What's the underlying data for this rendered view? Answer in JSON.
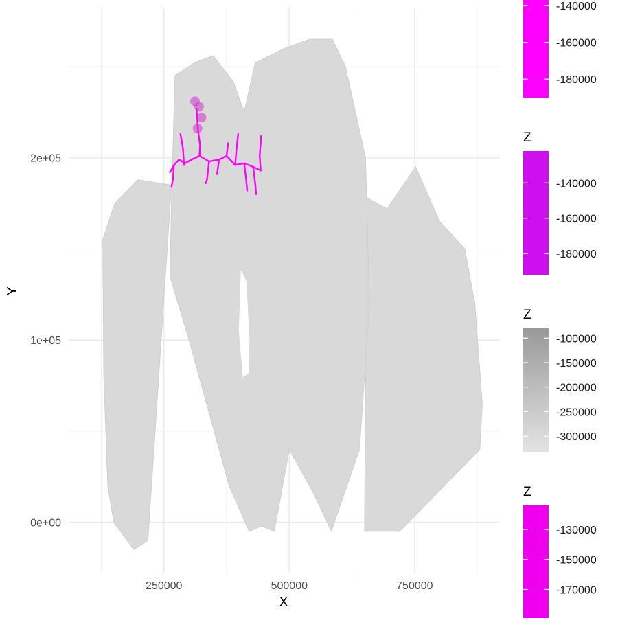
{
  "chart_data": {
    "type": "scatter",
    "xlabel": "X",
    "ylabel": "Y",
    "x_ticks": [
      {
        "value": 250000,
        "label": "250000"
      },
      {
        "value": 500000,
        "label": "500000"
      },
      {
        "value": 750000,
        "label": "750000"
      }
    ],
    "y_ticks": [
      {
        "value": 0,
        "label": "0e+00"
      },
      {
        "value": 100000,
        "label": "1e+05"
      },
      {
        "value": 200000,
        "label": "2e+05"
      }
    ],
    "xlim": [
      60000,
      920000
    ],
    "ylim": [
      -28000,
      282000
    ],
    "grid": true,
    "mesh": {
      "color": "#d6d6d6",
      "lobes": [
        {
          "name": "left-hemisphere",
          "points": [
            [
              218000,
              -10000
            ],
            [
              190000,
              -15000
            ],
            [
              150000,
              0
            ],
            [
              138000,
              20000
            ],
            [
              130000,
              80000
            ],
            [
              128000,
              155000
            ],
            [
              152000,
              175000
            ],
            [
              198000,
              188000
            ],
            [
              265000,
              185000
            ]
          ]
        },
        {
          "name": "right-hemisphere",
          "points": [
            [
              650000,
              -5000
            ],
            [
              720000,
              -5000
            ],
            [
              880000,
              40000
            ],
            [
              885000,
              65000
            ],
            [
              870000,
              120000
            ],
            [
              850000,
              150000
            ],
            [
              800000,
              165000
            ],
            [
              752000,
              195000
            ],
            [
              695000,
              172000
            ],
            [
              655000,
              178000
            ]
          ]
        },
        {
          "name": "central-brain",
          "points": [
            [
              265000,
              175000
            ],
            [
              272000,
              245000
            ],
            [
              310000,
              252000
            ],
            [
              348000,
              256000
            ],
            [
              388000,
              242000
            ],
            [
              410000,
              225000
            ],
            [
              432000,
              252000
            ],
            [
              490000,
              260000
            ],
            [
              540000,
              265000
            ],
            [
              586000,
              265000
            ],
            [
              612000,
              250000
            ],
            [
              652000,
              200000
            ],
            [
              660000,
              120000
            ],
            [
              640000,
              40000
            ],
            [
              584000,
              -5000
            ],
            [
              550000,
              15000
            ],
            [
              500000,
              40000
            ],
            [
              470000,
              -5000
            ],
            [
              445000,
              -2000
            ],
            [
              420000,
              -5000
            ],
            [
              380000,
              20000
            ],
            [
              340000,
              60000
            ],
            [
              300000,
              100000
            ],
            [
              262000,
              135000
            ]
          ]
        },
        {
          "name": "central-hole",
          "points": [
            [
              408000,
              80000
            ],
            [
              400000,
              105000
            ],
            [
              404000,
              138000
            ],
            [
              414000,
              132000
            ],
            [
              420000,
              100000
            ],
            [
              418000,
              82000
            ]
          ]
        }
      ]
    },
    "neuron": {
      "color": "#ff00ff",
      "soma_color": "#cc33cc",
      "somas": [
        [
          312000,
          231000
        ],
        [
          320000,
          228000
        ],
        [
          325000,
          222000
        ],
        [
          317000,
          216000
        ]
      ],
      "path": [
        [
          [
            315000,
            227000
          ],
          [
            318000,
            215000
          ],
          [
            322000,
            207000
          ],
          [
            321000,
            201000
          ]
        ],
        [
          [
            321000,
            201000
          ],
          [
            305000,
            199000
          ],
          [
            292000,
            197000
          ],
          [
            280000,
            199000
          ],
          [
            270000,
            196000
          ],
          [
            262000,
            192000
          ]
        ],
        [
          [
            321000,
            201000
          ],
          [
            340000,
            198000
          ],
          [
            360000,
            199000
          ],
          [
            375000,
            201000
          ],
          [
            392000,
            196000
          ],
          [
            410000,
            197000
          ],
          [
            428000,
            195000
          ],
          [
            443000,
            193000
          ]
        ],
        [
          [
            290000,
            196000
          ],
          [
            288000,
            205000
          ],
          [
            283000,
            213000
          ]
        ],
        [
          [
            270000,
            196000
          ],
          [
            268000,
            188000
          ],
          [
            265000,
            184000
          ]
        ],
        [
          [
            340000,
            198000
          ],
          [
            336000,
            188000
          ],
          [
            333000,
            186000
          ]
        ],
        [
          [
            392000,
            196000
          ],
          [
            395000,
            205000
          ],
          [
            398000,
            213000
          ]
        ],
        [
          [
            410000,
            197000
          ],
          [
            414000,
            188000
          ],
          [
            416000,
            182000
          ]
        ],
        [
          [
            428000,
            195000
          ],
          [
            432000,
            186000
          ],
          [
            434000,
            180000
          ]
        ],
        [
          [
            443000,
            193000
          ],
          [
            441000,
            201000
          ],
          [
            444000,
            212000
          ]
        ],
        [
          [
            360000,
            199000
          ],
          [
            356000,
            191000
          ]
        ],
        [
          [
            375000,
            201000
          ],
          [
            378000,
            208000
          ]
        ]
      ]
    },
    "legends": [
      {
        "title": "",
        "color": "#ff00ff",
        "labels": [
          {
            "value": -140000,
            "label": "-140000"
          },
          {
            "value": -160000,
            "label": "-160000"
          },
          {
            "value": -180000,
            "label": "-180000"
          }
        ],
        "range": [
          -122000,
          -190000
        ]
      },
      {
        "title": "Z",
        "color": "#cc11ee",
        "labels": [
          {
            "value": -140000,
            "label": "-140000"
          },
          {
            "value": -160000,
            "label": "-160000"
          },
          {
            "value": -180000,
            "label": "-180000"
          }
        ],
        "range": [
          -122000,
          -192000
        ]
      },
      {
        "title": "Z",
        "color": "gray-gradient",
        "labels": [
          {
            "value": -100000,
            "label": "-100000"
          },
          {
            "value": -150000,
            "label": "-150000"
          },
          {
            "value": -200000,
            "label": "-200000"
          },
          {
            "value": -250000,
            "label": "-250000"
          },
          {
            "value": -300000,
            "label": "-300000"
          }
        ],
        "range": [
          -80000,
          -332000
        ]
      },
      {
        "title": "Z",
        "color": "#ee00ee",
        "labels": [
          {
            "value": -130000,
            "label": "-130000"
          },
          {
            "value": -150000,
            "label": "-150000"
          },
          {
            "value": -170000,
            "label": "-170000"
          }
        ],
        "range": [
          -114000,
          -189000
        ]
      }
    ]
  }
}
